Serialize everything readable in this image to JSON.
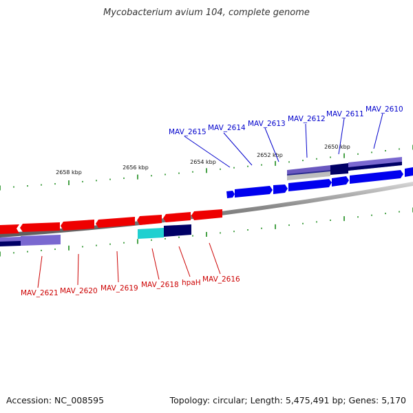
{
  "title": "Mycobacterium avium 104, complete genome",
  "footer": {
    "accession": "Accession: NC_008595",
    "summary": "Topology: circular; Length: 5,475,491 bp; Genes: 5,170"
  },
  "colors": {
    "forward_gene": "#0000ee",
    "reverse_gene": "#ee0000",
    "forward_label": "#0000cc",
    "reverse_label": "#cc0000",
    "pseudo_cyan": "#20d0d0",
    "feature_purple": "#7060c8",
    "feature_navy": "#000066",
    "backbone": "#888888",
    "tick": "#1a8a1a"
  },
  "scale_labels": [
    "2658 kbp",
    "2656 kbp",
    "2654 kbp",
    "2652 kbp",
    "2650 kbp"
  ],
  "forward_genes": [
    {
      "label": "MAV_2615"
    },
    {
      "label": "MAV_2614"
    },
    {
      "label": "MAV_2613"
    },
    {
      "label": "MAV_2612"
    },
    {
      "label": "MAV_2611"
    },
    {
      "label": "MAV_2610"
    }
  ],
  "reverse_genes": [
    {
      "label": "MAV_2621"
    },
    {
      "label": "MAV_2620"
    },
    {
      "label": "MAV_2619"
    },
    {
      "label": "MAV_2618"
    },
    {
      "label": "hpaH"
    },
    {
      "label": "MAV_2616"
    }
  ]
}
